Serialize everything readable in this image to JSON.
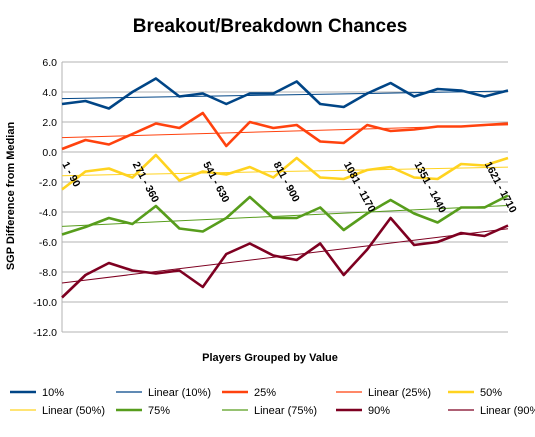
{
  "chart_data": {
    "type": "line",
    "title": "Breakout/Breakdown Chances",
    "xlabel": "Players Grouped by Value",
    "ylabel": "SGP Difference from Median",
    "ylim": [
      -12,
      6
    ],
    "y_ticks": [
      "6.0",
      "4.0",
      "2.0",
      "0.0",
      "-2.0",
      "-4.0",
      "-6.0",
      "-8.0",
      "-10.0",
      "-12.0"
    ],
    "category_labels": [
      "1 - 90",
      "271 - 360",
      "541 - 630",
      "811 - 900",
      "1081 - 1170",
      "1351 - 1440",
      "1621 - 1710"
    ],
    "category_label_positions": [
      0,
      3,
      6,
      9,
      12,
      15,
      18
    ],
    "num_points": 20,
    "grid": "horizontal",
    "legend_position": "bottom",
    "series": [
      {
        "name": "10%",
        "color": "#004586",
        "values": [
          3.2,
          3.4,
          2.9,
          4.0,
          4.9,
          3.7,
          3.9,
          3.2,
          3.9,
          3.9,
          4.7,
          3.2,
          3.0,
          3.9,
          4.6,
          3.7,
          4.2,
          4.1,
          3.7,
          4.1
        ]
      },
      {
        "name": "25%",
        "color": "#ff420e",
        "values": [
          0.2,
          0.8,
          0.5,
          1.2,
          1.9,
          1.6,
          2.6,
          0.4,
          2.0,
          1.6,
          1.8,
          0.7,
          0.6,
          1.8,
          1.4,
          1.5,
          1.7,
          1.7,
          1.8,
          1.9
        ]
      },
      {
        "name": "50%",
        "color": "#ffd320",
        "values": [
          -2.5,
          -1.3,
          -1.1,
          -1.7,
          -0.2,
          -1.9,
          -1.3,
          -1.5,
          -1.0,
          -1.7,
          -0.4,
          -1.7,
          -1.8,
          -1.2,
          -1.0,
          -1.7,
          -1.8,
          -0.8,
          -0.9,
          -0.4
        ]
      },
      {
        "name": "75%",
        "color": "#579d1c",
        "values": [
          -5.5,
          -5.0,
          -4.4,
          -4.8,
          -3.6,
          -5.1,
          -5.3,
          -4.4,
          -3.0,
          -4.4,
          -4.4,
          -3.7,
          -5.2,
          -4.1,
          -3.2,
          -4.1,
          -4.7,
          -3.7,
          -3.7,
          -2.9
        ]
      },
      {
        "name": "90%",
        "color": "#7e0021",
        "values": [
          -9.7,
          -8.2,
          -7.4,
          -7.9,
          -8.1,
          -7.9,
          -9.0,
          -6.8,
          -6.1,
          -6.9,
          -7.2,
          -6.1,
          -8.2,
          -6.5,
          -4.4,
          -6.2,
          -6.0,
          -5.4,
          -5.6,
          -4.9
        ]
      }
    ],
    "legend": [
      "10%",
      "Linear (10%)",
      "25%",
      "Linear (25%)",
      "50%",
      "Linear (50%)",
      "75%",
      "Linear (75%)",
      "90%",
      "Linear (90%)"
    ]
  }
}
